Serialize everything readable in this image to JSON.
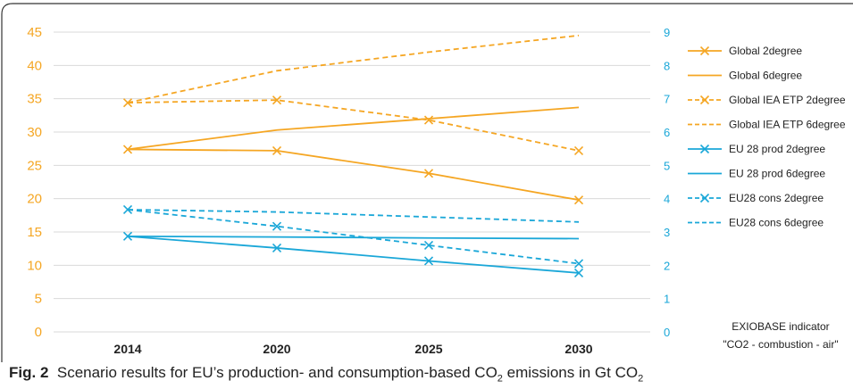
{
  "chart_data": {
    "type": "line",
    "categories": [
      "2014",
      "2020",
      "2025",
      "2030"
    ],
    "left_axis": {
      "ylim": [
        0,
        45
      ],
      "ticks": [
        "0",
        "5",
        "10",
        "15",
        "20",
        "25",
        "30",
        "35",
        "40",
        "45"
      ],
      "color": "#f5a623"
    },
    "right_axis": {
      "ylim": [
        0,
        9
      ],
      "ticks": [
        "0",
        "1",
        "2",
        "3",
        "4",
        "5",
        "6",
        "7",
        "8",
        "9"
      ],
      "color": "#1aa7d8"
    },
    "grid": true,
    "legend_position": "right",
    "series": [
      {
        "name": "Global  2degree",
        "axis": "left",
        "color": "#f5a623",
        "dashed": false,
        "marker": true,
        "values": [
          27.4,
          27.2,
          23.8,
          19.8
        ]
      },
      {
        "name": "Global  6degree",
        "axis": "left",
        "color": "#f5a623",
        "dashed": false,
        "marker": false,
        "values": [
          27.4,
          30.3,
          32.0,
          33.7
        ]
      },
      {
        "name": "Global IEA ETP 2degree",
        "axis": "left",
        "color": "#f5a623",
        "dashed": true,
        "marker": true,
        "values": [
          34.4,
          34.8,
          31.8,
          27.2
        ]
      },
      {
        "name": "Global IEA ETP 6degree",
        "axis": "left",
        "color": "#f5a623",
        "dashed": true,
        "marker": false,
        "values": [
          34.4,
          39.2,
          42.0,
          44.5
        ]
      },
      {
        "name": "EU 28 prod 2degree",
        "axis": "right",
        "color": "#1aa7d8",
        "dashed": false,
        "marker": true,
        "values": [
          2.87,
          2.52,
          2.13,
          1.77
        ]
      },
      {
        "name": "EU 28 prod 6degree",
        "axis": "right",
        "color": "#1aa7d8",
        "dashed": false,
        "marker": false,
        "values": [
          2.87,
          2.85,
          2.82,
          2.8
        ]
      },
      {
        "name": "EU28 cons 2degree",
        "axis": "right",
        "color": "#1aa7d8",
        "dashed": true,
        "marker": true,
        "values": [
          3.67,
          3.17,
          2.6,
          2.05
        ]
      },
      {
        "name": "EU28 cons 6degree",
        "axis": "right",
        "color": "#1aa7d8",
        "dashed": true,
        "marker": false,
        "values": [
          3.67,
          3.6,
          3.45,
          3.3
        ]
      }
    ],
    "annotation": [
      "EXIOBASE indicator",
      "\"CO2 - combustion - air\""
    ]
  },
  "caption": {
    "label": "Fig. 2",
    "text_before": "Scenario results for EU’s production- and consumption-based CO",
    "sub1": "2",
    "text_middle": " emissions in Gt CO",
    "sub2": "2"
  }
}
